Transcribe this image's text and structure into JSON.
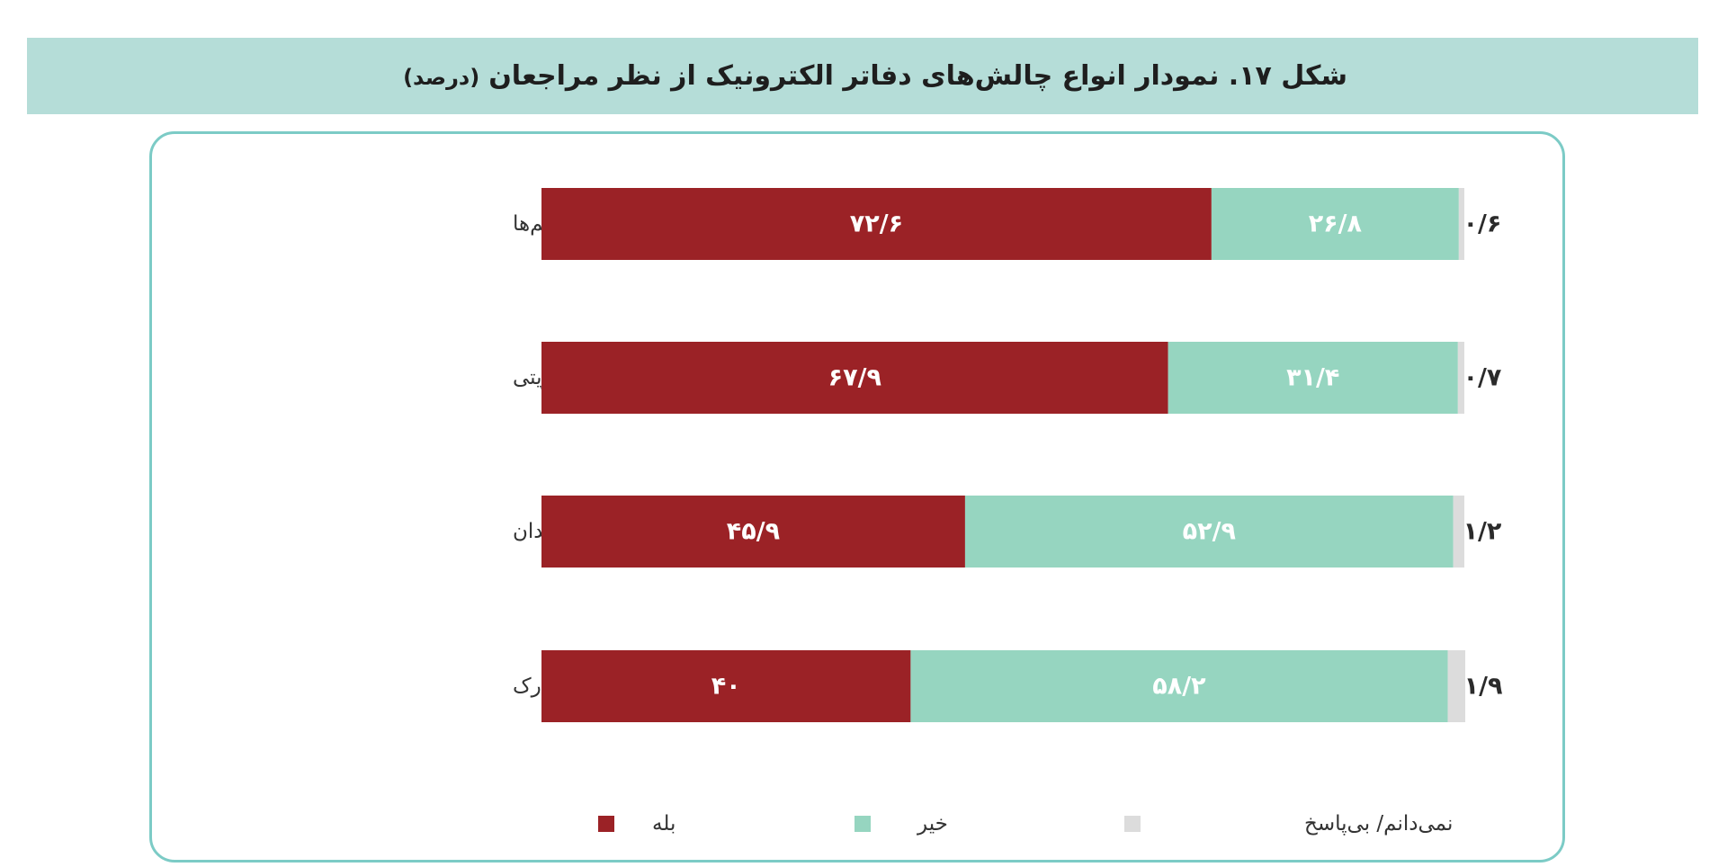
{
  "title": "شکل ۱۷. نمودار انواع چالش‌های دفاتر الکترونیک از نظر مراجعان",
  "subtitle": "(درصد)",
  "chart_data": {
    "type": "bar",
    "orientation": "horizontal",
    "stacked": true,
    "categories": [
      "کندی و قطع شدن سیستم‌ها",
      "درخواست کپی از مدارک هویتی",
      "کم بودن تعداد کارمندان",
      "درخواست کپی برابر اصل مدارک"
    ],
    "series": [
      {
        "name": "بله",
        "color": "#9b2226",
        "values": [
          72.6,
          67.9,
          45.9,
          40
        ],
        "labels": [
          "۷۲/۶",
          "۶۷/۹",
          "۴۵/۹",
          "۴۰"
        ]
      },
      {
        "name": "خیر",
        "color": "#96d5c0",
        "values": [
          26.8,
          31.4,
          52.9,
          58.2
        ],
        "labels": [
          "۲۶/۸",
          "۳۱/۴",
          "۵۲/۹",
          "۵۸/۲"
        ]
      },
      {
        "name": "نمی‌دانم/ بی‌پاسخ",
        "color": "#dcdcdc",
        "values": [
          0.6,
          0.7,
          1.2,
          1.9
        ],
        "labels": [
          "۰/۶",
          "۰/۷",
          "۱/۲",
          "۱/۹"
        ]
      }
    ],
    "xlim": [
      0,
      100
    ],
    "grid": false,
    "legend_position": "bottom"
  }
}
